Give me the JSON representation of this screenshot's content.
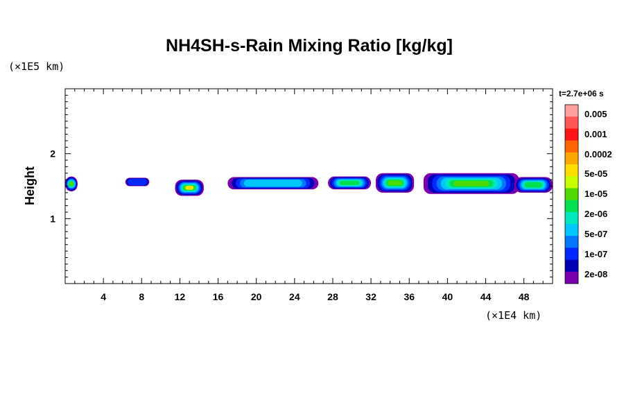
{
  "chart_data": {
    "type": "heatmap",
    "title": "NH4SH-s-Rain Mixing Ratio [kg/kg]",
    "ylabel": "Height",
    "xunit": "(×1E4 km)",
    "yunit": "(×1E5 km)",
    "time_label": "t=2.7e+06 s",
    "xlim": [
      0,
      51
    ],
    "ylim": [
      0,
      3
    ],
    "xticks": [
      4,
      8,
      12,
      16,
      20,
      24,
      28,
      32,
      36,
      40,
      44,
      48
    ],
    "yticks": [
      1,
      2
    ],
    "colorbar": {
      "labels": [
        "0.005",
        "0.001",
        "0.0002",
        "5e-05",
        "1e-05",
        "2e-06",
        "5e-07",
        "1e-07",
        "2e-08"
      ],
      "colors": [
        "#ff9f9f",
        "#ff5555",
        "#ff1515",
        "#ff6400",
        "#ffa500",
        "#ffdd00",
        "#c8ff00",
        "#4cdc00",
        "#00e050",
        "#00e8c0",
        "#00c8ff",
        "#0078ff",
        "#0028ff",
        "#0000b8",
        "#7a00b0"
      ]
    },
    "clouds": [
      {
        "x_range": [
          0,
          1.3
        ],
        "y_range": [
          1.42,
          1.65
        ],
        "max": "1e-05"
      },
      {
        "x_range": [
          6.3,
          8.8
        ],
        "y_range": [
          1.5,
          1.63
        ],
        "max": "1e-07"
      },
      {
        "x_range": [
          11.5,
          14.5
        ],
        "y_range": [
          1.35,
          1.6
        ],
        "max": "0.0002"
      },
      {
        "x_range": [
          17,
          26.5
        ],
        "y_range": [
          1.45,
          1.64
        ],
        "max": "5e-07"
      },
      {
        "x_range": [
          27.5,
          32
        ],
        "y_range": [
          1.45,
          1.65
        ],
        "max": "2e-06"
      },
      {
        "x_range": [
          32.5,
          36.5
        ],
        "y_range": [
          1.4,
          1.7
        ],
        "max": "1e-05"
      },
      {
        "x_range": [
          37.5,
          47.5
        ],
        "y_range": [
          1.38,
          1.7
        ],
        "max": "1e-05"
      },
      {
        "x_range": [
          47,
          51
        ],
        "y_range": [
          1.4,
          1.64
        ],
        "max": "2e-06"
      }
    ]
  }
}
